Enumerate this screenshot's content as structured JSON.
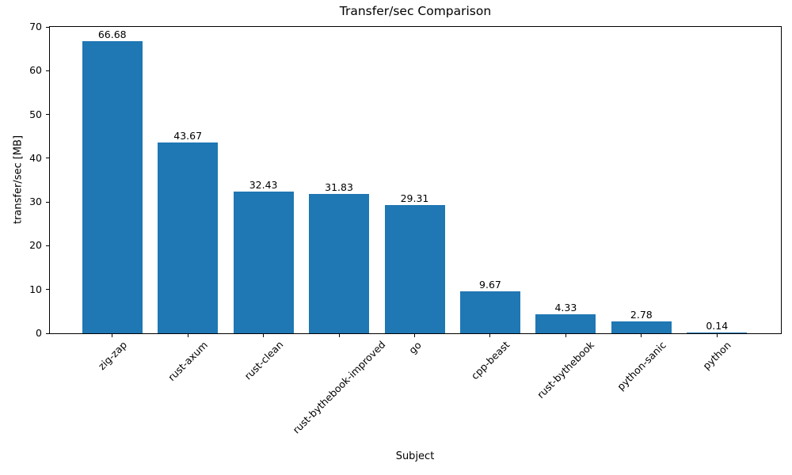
{
  "chart_data": {
    "type": "bar",
    "title": "Transfer/sec Comparison",
    "xlabel": "Subject",
    "ylabel": "transfer/sec [MB]",
    "categories": [
      "zig-zap",
      "rust-axum",
      "rust-clean",
      "rust-bythebook-improved",
      "go",
      "cpp-beast",
      "rust-bythebook",
      "python-sanic",
      "python"
    ],
    "values": [
      66.68,
      43.67,
      32.43,
      31.83,
      29.31,
      9.67,
      4.33,
      2.78,
      0.14
    ],
    "bar_labels": [
      "66.68",
      "43.67",
      "32.43",
      "31.83",
      "29.31",
      "9.67",
      "4.33",
      "2.78",
      "0.14"
    ],
    "ylim": [
      0,
      70
    ],
    "yticks": [
      0,
      10,
      20,
      30,
      40,
      50,
      60,
      70
    ],
    "bar_color": "#1f77b4",
    "axis_color": "#000000",
    "grid": false,
    "legend": null,
    "x_tick_rotation_deg": 45
  }
}
